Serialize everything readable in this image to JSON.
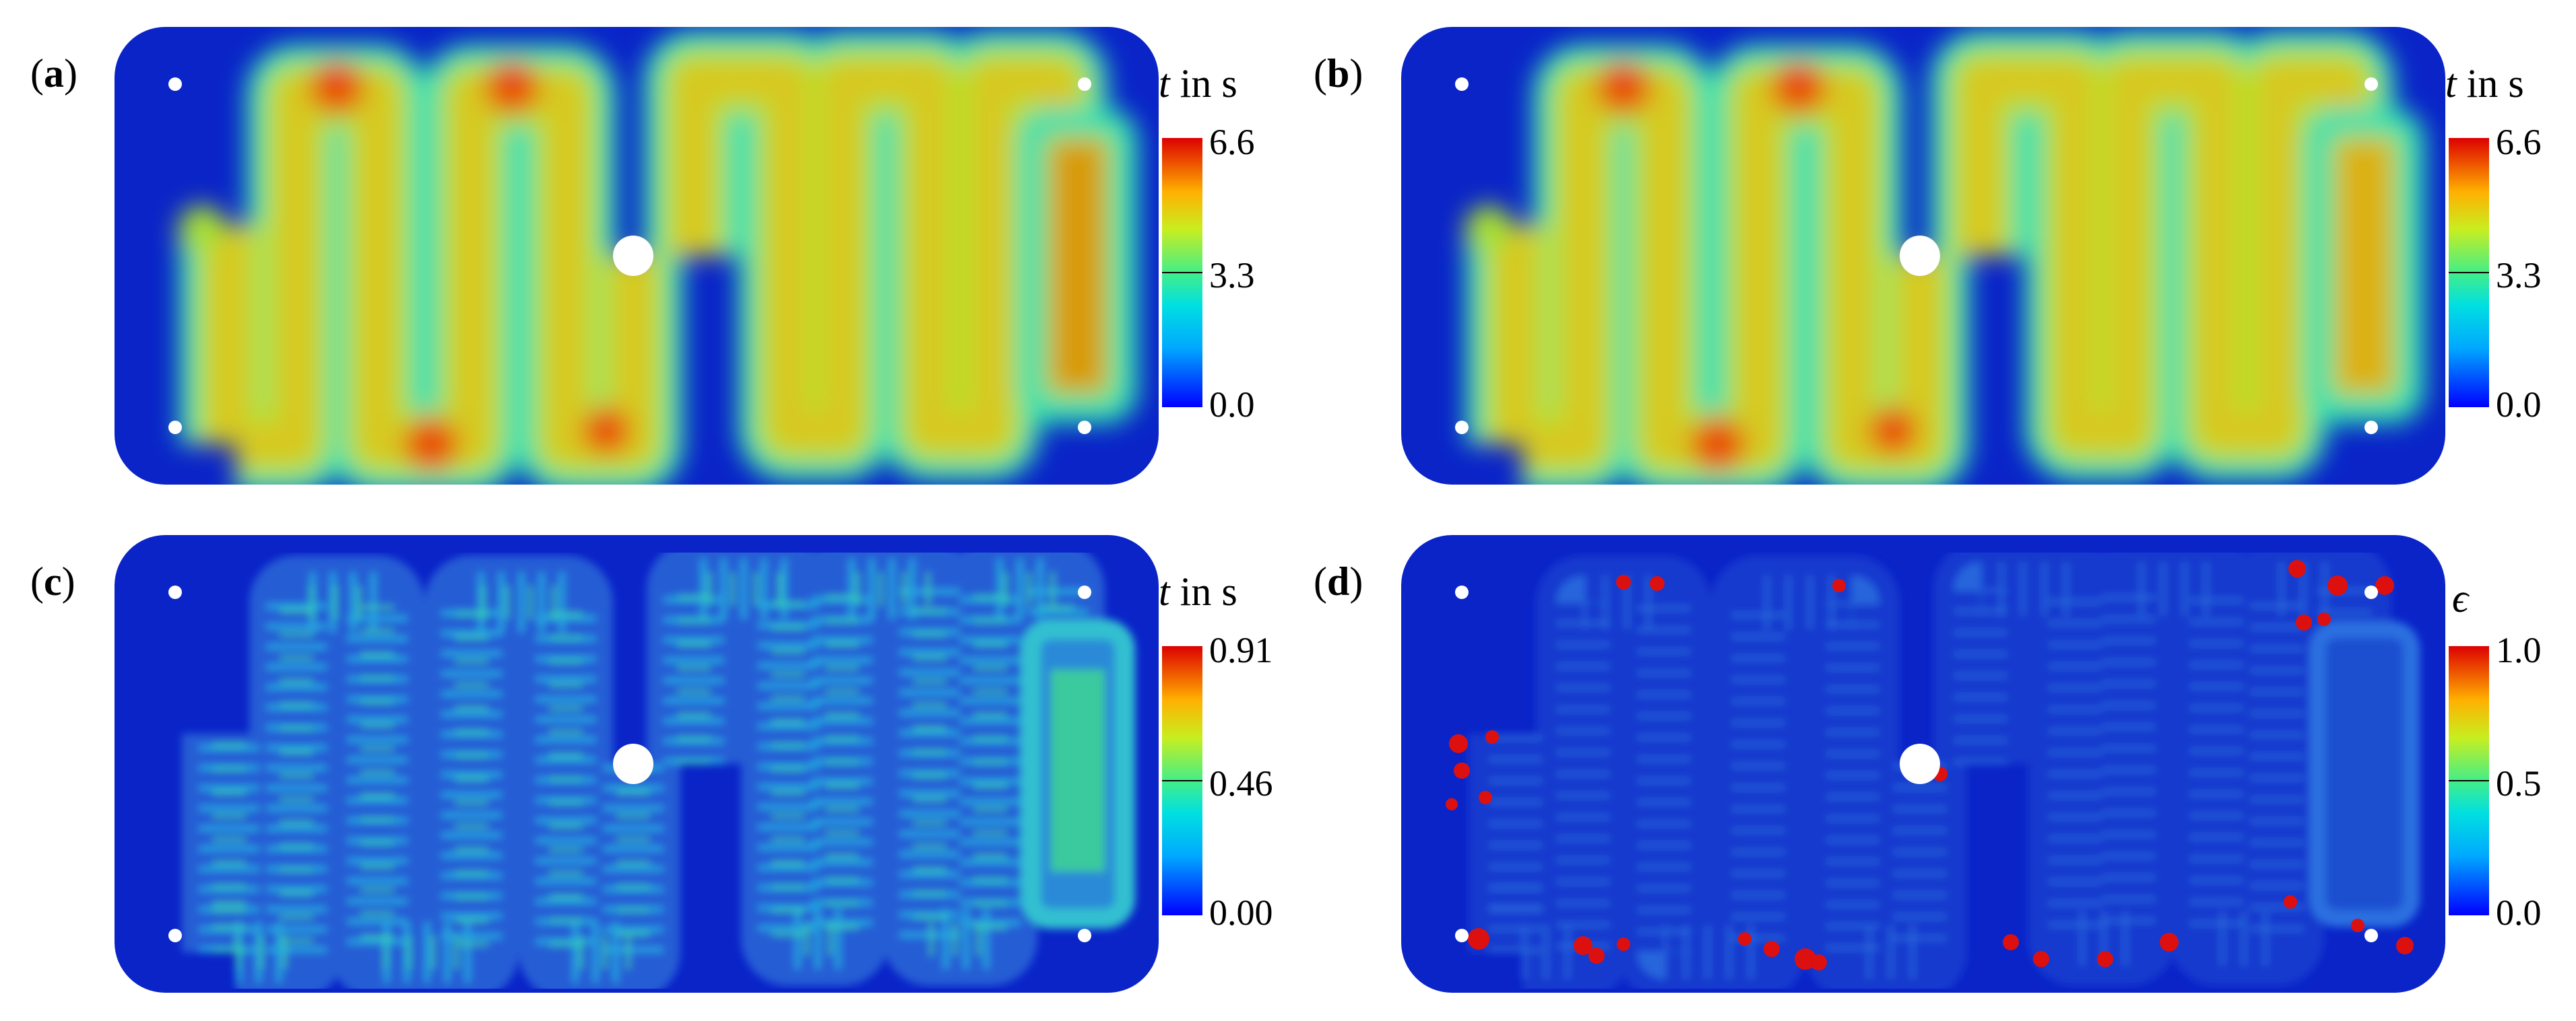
{
  "colors": {
    "background": "#0a24c8",
    "colormap": [
      "#0000ff",
      "#00ccff",
      "#44ee88",
      "#ffee00",
      "#ff8800",
      "#dd0000"
    ]
  },
  "panels": [
    {
      "label": "a",
      "field": "flow-front-time",
      "cbar_var": "t",
      "cbar_unit": "in s",
      "ticks": [
        "6.6",
        "3.3",
        "0.0"
      ]
    },
    {
      "label": "b",
      "field": "flow-front-time",
      "cbar_var": "t",
      "cbar_unit": "in s",
      "ticks": [
        "6.6",
        "3.3",
        "0.0"
      ]
    },
    {
      "label": "c",
      "field": "absolute-difference",
      "cbar_var": "t",
      "cbar_unit": "in s",
      "ticks": [
        "0.91",
        "0.46",
        "0.00"
      ]
    },
    {
      "label": "d",
      "field": "relative-error",
      "cbar_var": "ϵ",
      "cbar_unit": "",
      "ticks": [
        "1.0",
        "0.5",
        "0.0"
      ]
    }
  ]
}
